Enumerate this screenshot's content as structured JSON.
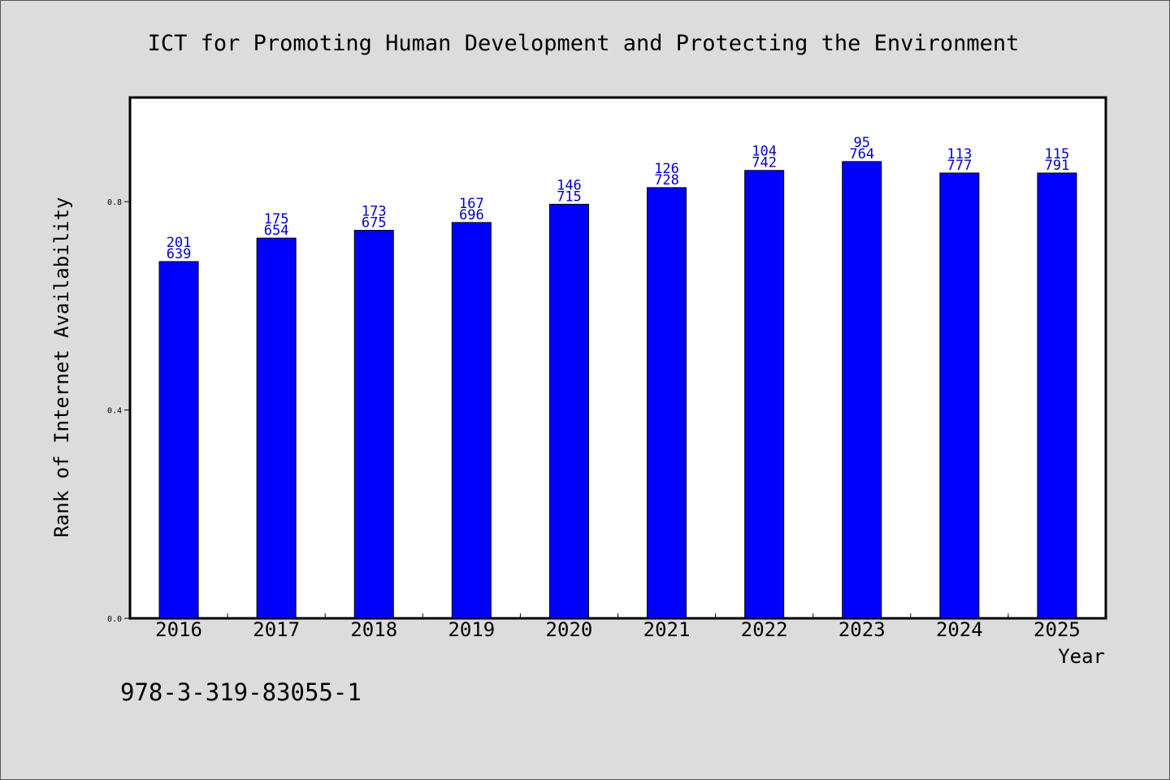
{
  "chart_data": {
    "type": "bar",
    "title": "ICT for Promoting Human Development and Protecting the Environment",
    "xlabel": "Year",
    "ylabel": "Rank of Internet Availability",
    "categories": [
      "2016",
      "2017",
      "2018",
      "2019",
      "2020",
      "2021",
      "2022",
      "2023",
      "2024",
      "2025"
    ],
    "values": [
      0.685,
      0.73,
      0.745,
      0.76,
      0.795,
      0.827,
      0.86,
      0.877,
      0.855,
      0.855
    ],
    "label_top": [
      "201",
      "175",
      "173",
      "167",
      "146",
      "126",
      "104",
      "95",
      "113",
      "115"
    ],
    "label_bottom": [
      "639",
      "654",
      "675",
      "696",
      "715",
      "728",
      "742",
      "764",
      "777",
      "791"
    ],
    "ylim": [
      0,
      1.0
    ],
    "yticks": [
      0.0,
      0.4,
      0.8
    ],
    "ytick_labels": [
      "0.0",
      "0.4",
      "0.8"
    ],
    "bar_color": "#0000ff",
    "label_color": "#0000cc",
    "grid": false,
    "legend": "none"
  },
  "footer": {
    "isbn": "978-3-319-83055-1"
  }
}
